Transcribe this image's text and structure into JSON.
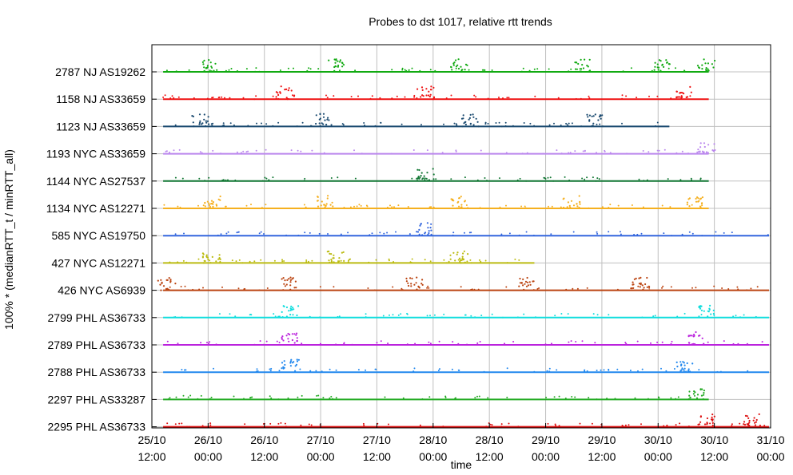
{
  "chart_data": {
    "type": "scatter",
    "title": "Probes to dst 1017, relative rtt trends",
    "xlabel": "time",
    "ylabel": "100% * (medianRTT_t / minRTT_all)",
    "x_ticks": [
      {
        "line1": "25/10",
        "line2": "12:00"
      },
      {
        "line1": "26/10",
        "line2": "00:00"
      },
      {
        "line1": "26/10",
        "line2": "12:00"
      },
      {
        "line1": "27/10",
        "line2": "00:00"
      },
      {
        "line1": "27/10",
        "line2": "12:00"
      },
      {
        "line1": "28/10",
        "line2": "00:00"
      },
      {
        "line1": "28/10",
        "line2": "12:00"
      },
      {
        "line1": "29/10",
        "line2": "00:00"
      },
      {
        "line1": "29/10",
        "line2": "12:00"
      },
      {
        "line1": "30/10",
        "line2": "00:00"
      },
      {
        "line1": "30/10",
        "line2": "12:00"
      },
      {
        "line1": "31/10",
        "line2": "00:00"
      }
    ],
    "xlim": [
      "2025-10-25 12:00",
      "2025-10-31 00:00"
    ],
    "grid": true,
    "series": [
      {
        "name": "2787 NJ AS19262",
        "color": "#11aa11",
        "start": 0.1,
        "end": 4.95,
        "spikes": [
          0.5,
          1.6,
          2.7,
          3.8,
          4.5,
          4.9
        ]
      },
      {
        "name": "1158 NJ AS33659",
        "color": "#ee1111",
        "start": 0.1,
        "end": 4.95,
        "spikes": [
          1.15,
          2.4,
          4.7
        ]
      },
      {
        "name": "1123 NJ AS33659",
        "color": "#1a4a70",
        "start": 0.1,
        "end": 4.6,
        "spikes": [
          0.4,
          1.5,
          2.8,
          3.9
        ]
      },
      {
        "name": "1193 NYC AS33659",
        "color": "#bb88ee",
        "start": 0.1,
        "end": 4.95,
        "spikes": [
          4.9
        ]
      },
      {
        "name": "1144 NYC AS27537",
        "color": "#117733",
        "start": 0.1,
        "end": 4.95,
        "spikes": [
          2.4
        ]
      },
      {
        "name": "1134 NYC AS12271",
        "color": "#f5b020",
        "start": 0.1,
        "end": 4.95,
        "spikes": [
          0.5,
          1.5,
          2.7,
          3.7,
          4.8
        ]
      },
      {
        "name": "585 NYC AS19750",
        "color": "#3366dd",
        "start": 0.1,
        "end": 5.6,
        "spikes": [
          2.4
        ]
      },
      {
        "name": "427 NYC AS12271",
        "color": "#bbbb11",
        "start": 0.1,
        "end": 3.4,
        "spikes": [
          0.5,
          1.6,
          2.7
        ]
      },
      {
        "name": "426 NYC AS6939",
        "color": "#bb4411",
        "start": 0.1,
        "end": 5.6,
        "spikes": [
          0.1,
          1.2,
          2.3,
          3.3,
          4.3
        ]
      },
      {
        "name": "2799 PHL AS36733",
        "color": "#11dddd",
        "start": 0.1,
        "end": 5.6,
        "spikes": [
          1.2,
          4.9
        ]
      },
      {
        "name": "2789 PHL AS36733",
        "color": "#bb22dd",
        "start": 0.1,
        "end": 5.6,
        "spikes": [
          1.2,
          4.8
        ]
      },
      {
        "name": "2788 PHL AS36733",
        "color": "#2288ee",
        "start": 0.1,
        "end": 5.6,
        "spikes": [
          1.2,
          4.7
        ]
      },
      {
        "name": "2297 PHL AS33287",
        "color": "#22aa22",
        "start": 0.1,
        "end": 4.95,
        "spikes": [
          4.8
        ]
      },
      {
        "name": "2295 PHL AS36733",
        "color": "#dd1111",
        "start": 0.1,
        "end": 5.6,
        "spikes": [
          4.9,
          5.3
        ]
      }
    ]
  }
}
